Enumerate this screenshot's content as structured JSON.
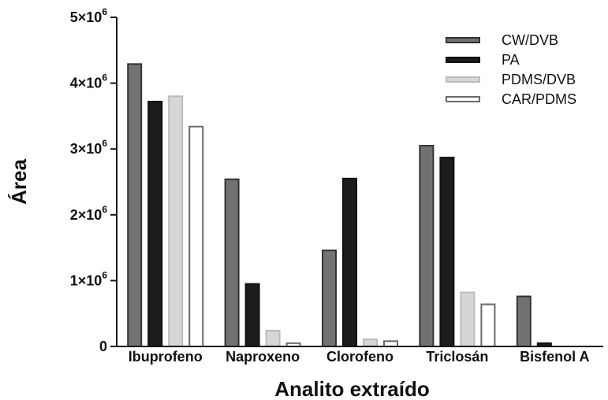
{
  "chart_data": {
    "type": "bar",
    "xlabel": "Analito extraído",
    "ylabel": "Área",
    "categories": [
      "Ibuprofeno",
      "Naproxeno",
      "Clorofeno",
      "Triclosán",
      "Bisfenol A"
    ],
    "series": [
      {
        "name": "CW/DVB",
        "fill": "#727272",
        "stroke": "#333333",
        "values": [
          4290000,
          2540000,
          1460000,
          3050000,
          760000
        ]
      },
      {
        "name": "PA",
        "fill": "#1c1c1c",
        "stroke": "#111111",
        "values": [
          3720000,
          950000,
          2550000,
          2870000,
          50000
        ]
      },
      {
        "name": "PDMS/DVB",
        "fill": "#d6d6d6",
        "stroke": "#bbbbbb",
        "values": [
          3800000,
          240000,
          110000,
          820000,
          0
        ]
      },
      {
        "name": "CAR/PDMS",
        "fill": "#ffffff",
        "stroke": "#6a6a6a",
        "values": [
          3340000,
          50000,
          80000,
          640000,
          0
        ]
      }
    ],
    "ylim": [
      0,
      5000000
    ],
    "yticks": [
      {
        "value": 0,
        "mant": "0",
        "exp": ""
      },
      {
        "value": 1000000,
        "mant": "1×10",
        "exp": "6"
      },
      {
        "value": 2000000,
        "mant": "2×10",
        "exp": "6"
      },
      {
        "value": 3000000,
        "mant": "3×10",
        "exp": "6"
      },
      {
        "value": 4000000,
        "mant": "4×10",
        "exp": "6"
      },
      {
        "value": 5000000,
        "mant": "5×10",
        "exp": "6"
      }
    ],
    "legend_position": "top-right",
    "grid": false
  }
}
